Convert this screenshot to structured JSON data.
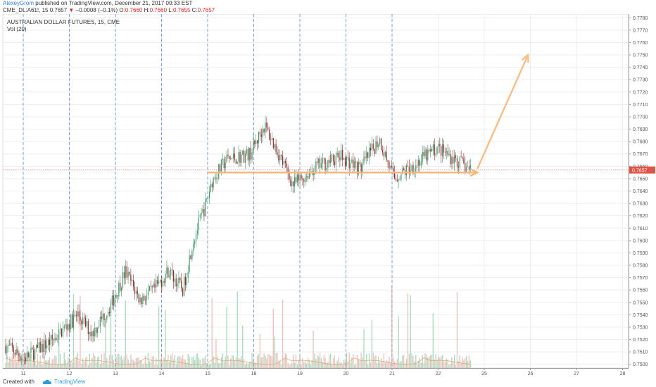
{
  "header": {
    "author": "AlexeyGrom",
    "published_text": "published on TradingView.com, December 21, 2017 00:33 EST",
    "symbol": "CME_DL:A61!, 15",
    "last": "0.7657",
    "change": "−0.0008 (−0.1%)",
    "o_label": "O:",
    "o_value": "0.7660",
    "h_label": "H:",
    "h_value": "0.7660",
    "l_label": "L:",
    "l_value": "0.7655",
    "c_label": "C:",
    "c_value": "0.7657"
  },
  "footer": {
    "created": "Created with",
    "brand": "TradingView"
  },
  "chart_data": {
    "type": "candlestick",
    "title": "AUSTRALIAN DOLLAR FUTURES, 15, CME",
    "volume_label": "Vol (20)",
    "x_ticks": [
      "11",
      "12",
      "13",
      "14",
      "15",
      "18",
      "19",
      "20",
      "21",
      "22",
      "25",
      "26",
      "27",
      "28"
    ],
    "y_ticks": [
      "0.7500",
      "0.7510",
      "0.7520",
      "0.7530",
      "0.7540",
      "0.7550",
      "0.7560",
      "0.7570",
      "0.7580",
      "0.7590",
      "0.7600",
      "0.7610",
      "0.7620",
      "0.7630",
      "0.7640",
      "0.7650",
      "0.7660",
      "0.7670",
      "0.7680",
      "0.7690",
      "0.7700",
      "0.7710",
      "0.7720",
      "0.7730",
      "0.7740",
      "0.7750",
      "0.7760",
      "0.7770",
      "0.7780"
    ],
    "ylim": [
      0.7497,
      0.7783
    ],
    "current_price": "0.7657",
    "price_path": [
      [
        0,
        0.7515
      ],
      [
        0.4,
        0.7505
      ],
      [
        1.0,
        0.752
      ],
      [
        1.5,
        0.754
      ],
      [
        1.8,
        0.7525
      ],
      [
        2.2,
        0.7548
      ],
      [
        2.5,
        0.7575
      ],
      [
        2.8,
        0.7552
      ],
      [
        3.1,
        0.756
      ],
      [
        3.4,
        0.7576
      ],
      [
        3.7,
        0.756
      ],
      [
        3.9,
        0.7598
      ],
      [
        4.02,
        0.7612
      ],
      [
        4.2,
        0.7632
      ],
      [
        4.3,
        0.7648
      ],
      [
        4.6,
        0.7665
      ],
      [
        5.1,
        0.767
      ],
      [
        5.4,
        0.7693
      ],
      [
        5.7,
        0.767
      ],
      [
        6.0,
        0.7645
      ],
      [
        6.5,
        0.766
      ],
      [
        7.0,
        0.7668
      ],
      [
        7.4,
        0.7658
      ],
      [
        7.8,
        0.7682
      ],
      [
        8.1,
        0.765
      ],
      [
        8.5,
        0.766
      ],
      [
        9.0,
        0.7675
      ],
      [
        9.4,
        0.7665
      ],
      [
        9.7,
        0.7657
      ]
    ],
    "annotations": [
      {
        "type": "support_line",
        "y": 0.7655,
        "x_from": 4.0,
        "x_to": 9.85
      },
      {
        "type": "arrow",
        "from": [
          9.85,
          0.7658
        ],
        "to": [
          10.95,
          0.775
        ]
      }
    ]
  }
}
